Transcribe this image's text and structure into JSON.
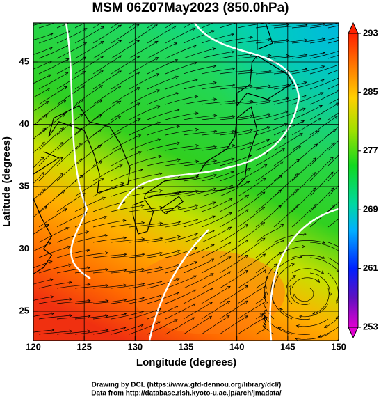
{
  "title": "MSM 06Z07May2023 (850.0hPa)",
  "map": {
    "x_label": "Longitude (degrees)",
    "y_label": "Latitude  (degrees)",
    "xlim": [
      120,
      150
    ],
    "ylim": [
      22.65,
      48.13
    ],
    "xticks": [
      120,
      125,
      130,
      135,
      140,
      145,
      150
    ],
    "yticks": [
      25,
      30,
      35,
      40,
      45
    ]
  },
  "colorbar": {
    "clim": [
      253,
      293
    ],
    "ticks": [
      253,
      261,
      269,
      277,
      285,
      293
    ]
  },
  "footer": [
    "Drawing by DCL (https://www.gfd-dennou.org/library/dcl/)",
    "Data from http://database.rish.kyoto-u.ac.jp/arch/jmadata/"
  ]
}
